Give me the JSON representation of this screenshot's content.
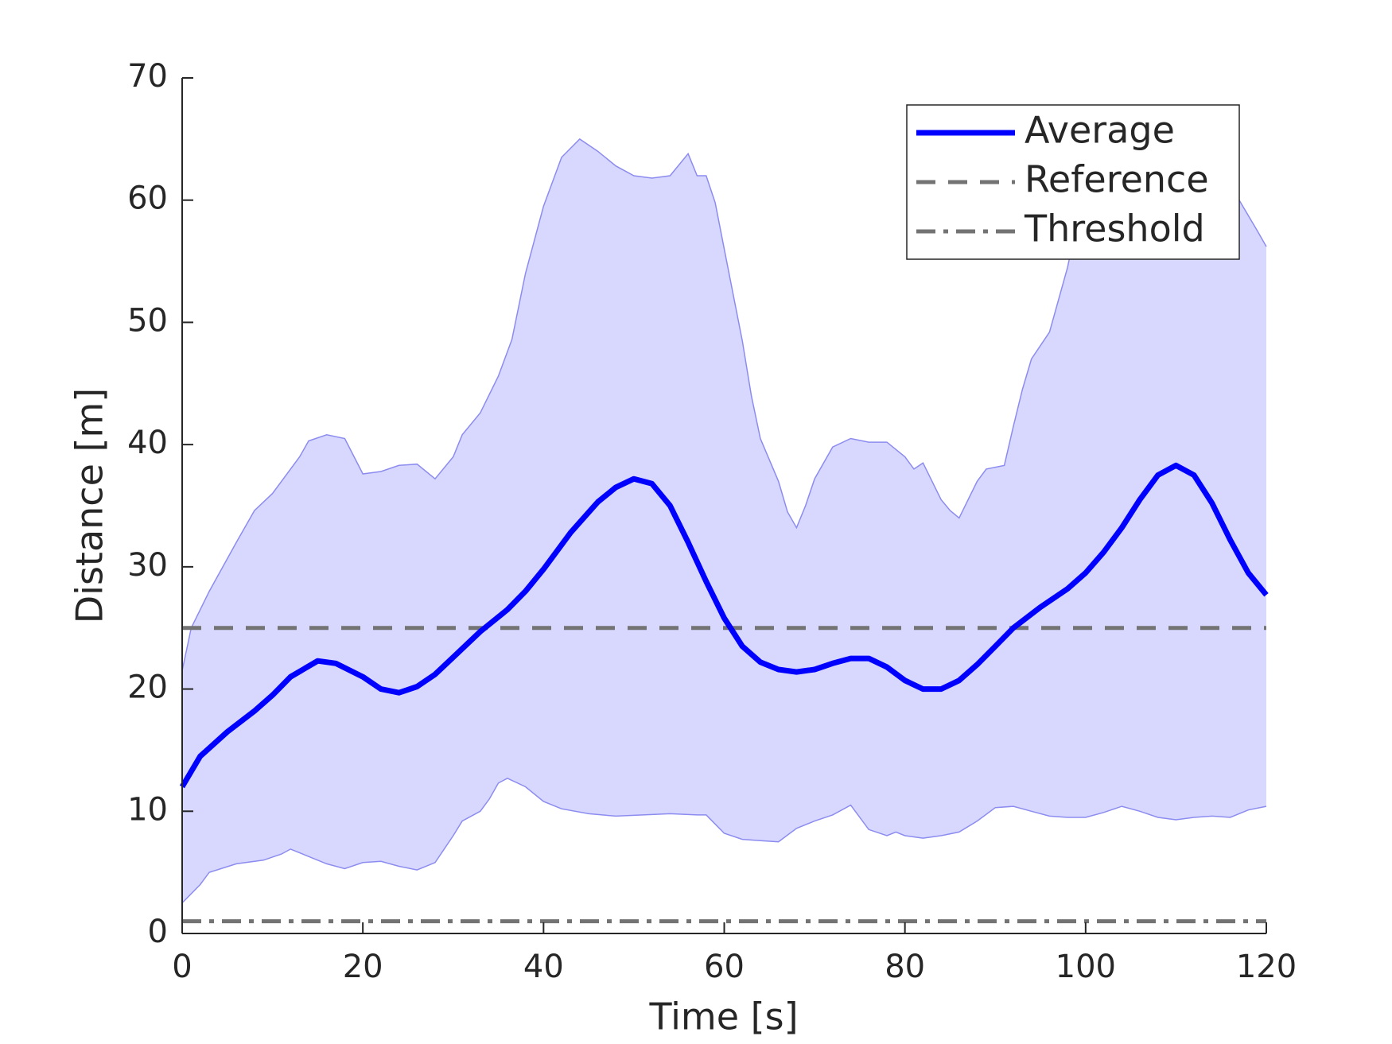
{
  "chart_data": {
    "type": "line",
    "xlabel": "Time [s]",
    "ylabel": "Distance [m]",
    "xlim": [
      0,
      120
    ],
    "ylim": [
      0,
      70
    ],
    "xticks": [
      0,
      20,
      40,
      60,
      80,
      100,
      120
    ],
    "yticks": [
      0,
      10,
      20,
      30,
      40,
      50,
      60,
      70
    ],
    "legend": "upper right",
    "x": [
      0,
      2,
      5,
      8,
      10,
      12,
      15,
      17,
      20,
      22,
      24,
      26,
      28,
      30,
      33,
      36,
      38,
      40,
      43,
      46,
      48,
      50,
      52,
      54,
      56,
      58,
      60,
      62,
      64,
      66,
      68,
      70,
      72,
      74,
      76,
      78,
      80,
      82,
      84,
      86,
      88,
      90,
      92,
      95,
      98,
      100,
      102,
      104,
      106,
      108,
      110,
      112,
      114,
      116,
      118,
      120
    ],
    "series": [
      {
        "name": "Average",
        "color": "#0000ff",
        "values": [
          12,
          14.5,
          16.5,
          18.2,
          19.5,
          21,
          22.3,
          22.1,
          21,
          20,
          19.7,
          20.2,
          21.2,
          22.6,
          24.7,
          26.5,
          28,
          29.8,
          32.8,
          35.3,
          36.5,
          37.2,
          36.8,
          35,
          32,
          28.8,
          25.8,
          23.5,
          22.2,
          21.6,
          21.4,
          21.6,
          22.1,
          22.5,
          22.5,
          21.8,
          20.7,
          20,
          20,
          20.7,
          22,
          23.5,
          25,
          26.7,
          28.2,
          29.5,
          31.2,
          33.2,
          35.5,
          37.5,
          38.3,
          37.5,
          35.2,
          32.2,
          29.5,
          27.7
        ]
      }
    ],
    "band": {
      "color": "#d8d8ff",
      "edge": "#8c8cf0",
      "upper": {
        "x": [
          0,
          1,
          3,
          6,
          8,
          10,
          11,
          13,
          14,
          16,
          18,
          20,
          22,
          24,
          26,
          28,
          30,
          31,
          33,
          35,
          36.5,
          38,
          40,
          42,
          44,
          46,
          48,
          50,
          52,
          54,
          56,
          57,
          58,
          59,
          60,
          62,
          63,
          64,
          66,
          67,
          68,
          69,
          70,
          72,
          74,
          76,
          78,
          80,
          81,
          82,
          84,
          85,
          86,
          88,
          89,
          91,
          92,
          93,
          94,
          96,
          98,
          99,
          100,
          102,
          104,
          106,
          108,
          110,
          112,
          115,
          117,
          119,
          120
        ],
        "values": [
          21.5,
          25,
          28,
          32,
          34.6,
          36,
          37,
          39,
          40.3,
          40.8,
          40.5,
          37.6,
          37.8,
          38.3,
          38.4,
          37.2,
          39,
          40.8,
          42.6,
          45.6,
          48.6,
          54,
          59.5,
          63.5,
          65,
          64,
          62.8,
          62,
          61.8,
          62,
          63.8,
          62,
          62,
          59.8,
          56,
          48.5,
          44,
          40.5,
          37,
          34.5,
          33.2,
          35,
          37.2,
          39.8,
          40.5,
          40.2,
          40.2,
          39,
          38,
          38.5,
          35.5,
          34.6,
          34,
          37,
          38,
          38.3,
          41.5,
          44.5,
          47,
          49.2,
          54.5,
          58,
          61,
          64,
          65,
          64,
          63,
          62,
          63,
          61.5,
          60,
          57.5,
          56.2
        ]
      },
      "lower": {
        "x": [
          0,
          2,
          3,
          6,
          9,
          11,
          12,
          14,
          16,
          18,
          20,
          22,
          24,
          26,
          28,
          30,
          31,
          33,
          34,
          35,
          36,
          38,
          40,
          42,
          45,
          48,
          51,
          54,
          57,
          58,
          60,
          62,
          64,
          66,
          68,
          70,
          72,
          74,
          76,
          78,
          79,
          80,
          82,
          84,
          86,
          88,
          90,
          92,
          94,
          96,
          98,
          100,
          102,
          104,
          106,
          108,
          110,
          112,
          114,
          116,
          118,
          120
        ],
        "values": [
          2.5,
          4,
          5,
          5.7,
          6,
          6.5,
          6.9,
          6.3,
          5.7,
          5.3,
          5.8,
          5.9,
          5.5,
          5.2,
          5.8,
          8,
          9.2,
          10,
          11,
          12.3,
          12.7,
          12,
          10.8,
          10.2,
          9.8,
          9.6,
          9.7,
          9.8,
          9.7,
          9.7,
          8.2,
          7.7,
          7.6,
          7.5,
          8.6,
          9.2,
          9.7,
          10.5,
          8.5,
          8,
          8.3,
          8,
          7.8,
          8,
          8.3,
          9.2,
          10.3,
          10.4,
          10,
          9.6,
          9.5,
          9.5,
          9.9,
          10.4,
          10,
          9.5,
          9.3,
          9.5,
          9.6,
          9.5,
          10.1,
          10.4
        ]
      }
    },
    "hlines": [
      {
        "name": "Reference",
        "value": 25,
        "color": "#737373",
        "style": "dashed"
      },
      {
        "name": "Threshold",
        "value": 1,
        "color": "#737373",
        "style": "dashdot"
      }
    ]
  }
}
